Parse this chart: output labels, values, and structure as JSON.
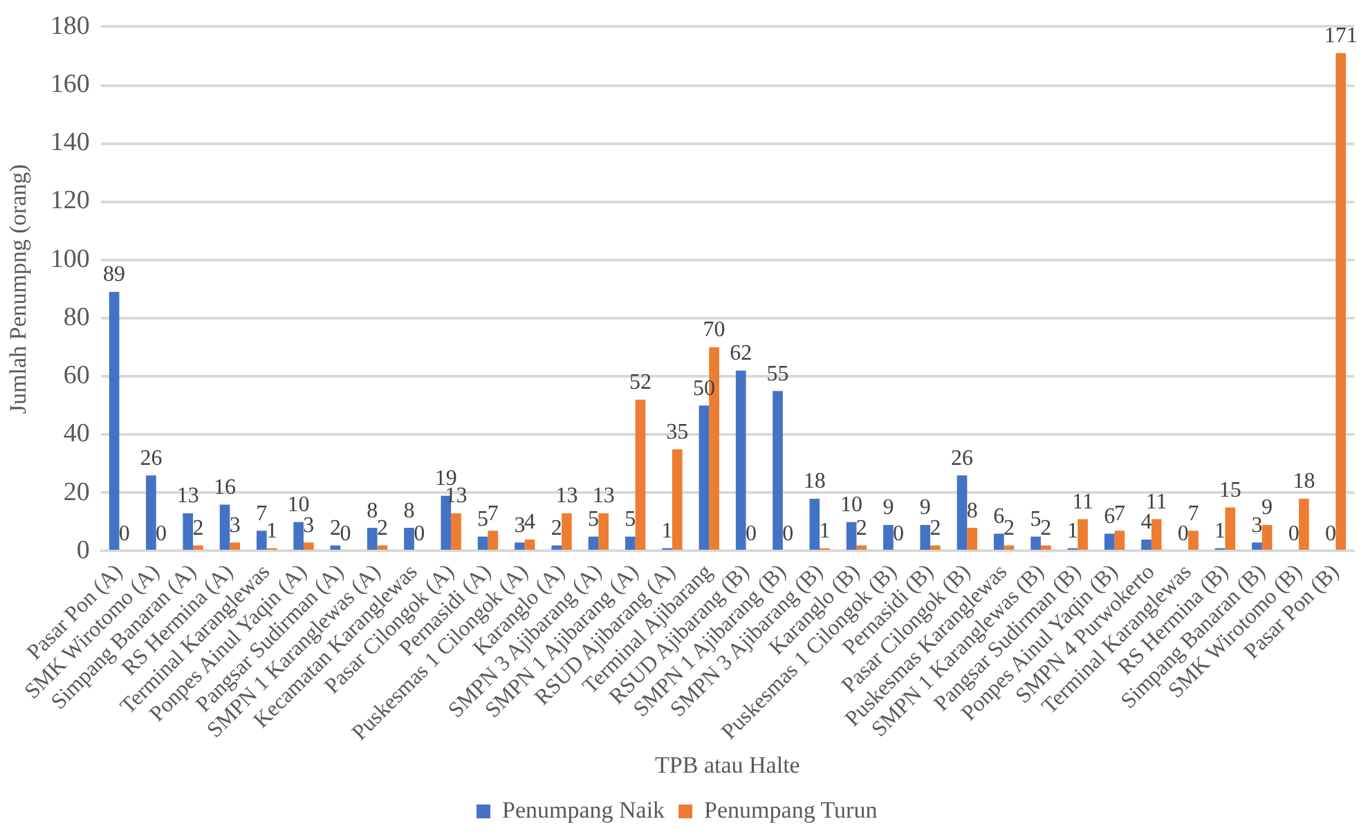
{
  "chart_data": {
    "type": "bar",
    "xlabel": "TPB atau Halte",
    "ylabel": "Jumlah Penumpng (orang)",
    "categories": [
      "Pasar Pon (A)",
      "SMK Wirotomo (A)",
      "Simpang Banaran (A)",
      "RS Hermina (A)",
      "Terminal Karanglewas",
      "Ponpes Ainul Yaqin (A)",
      "Pangsar Sudirman (A)",
      "SMPN 1 Karanglewas (A)",
      "Kecamatan Karanglewas",
      "Pasar Cilongok (A)",
      "Pernasidi (A)",
      "Puskesmas 1 Cilongok (A)",
      "Karanglo (A)",
      "SMPN 3 Ajibarang (A)",
      "SMPN 1 Ajibarang (A)",
      "RSUD Ajibarang (A)",
      "Terminal Ajibarang",
      "RSUD Ajibarang (B)",
      "SMPN 1 Ajibarang (B)",
      "SMPN 3 Ajibarang (B)",
      "Karanglo (B)",
      "Puskesmas 1 Cilongok (B)",
      "Pernasidi (B)",
      "Pasar Cilongok (B)",
      "Puskesmas Karanglewas",
      "SMPN 1 Karanglewas (B)",
      "Pangsar Sudirman (B)",
      "Ponpes Ainul Yaqin (B)",
      "SMPN 4 Purwokerto",
      "Terminal Karanglewas",
      "RS Hermina (B)",
      "Simpang Banaran (B)",
      "SMK Wirotomo (B)",
      "Pasar Pon (B)"
    ],
    "series": [
      {
        "name": "Penumpang Naik",
        "color": "#4472c4",
        "values": [
          89,
          26,
          13,
          16,
          7,
          10,
          2,
          8,
          8,
          19,
          5,
          3,
          2,
          5,
          5,
          1,
          50,
          62,
          55,
          18,
          10,
          9,
          9,
          26,
          6,
          5,
          1,
          6,
          4,
          0,
          1,
          3,
          0,
          0
        ]
      },
      {
        "name": "Penumpang Turun",
        "color": "#ed7d31",
        "values": [
          0,
          0,
          2,
          3,
          1,
          3,
          0,
          2,
          0,
          13,
          7,
          4,
          13,
          13,
          52,
          35,
          70,
          0,
          0,
          1,
          2,
          0,
          2,
          8,
          2,
          2,
          11,
          7,
          11,
          7,
          15,
          9,
          18,
          171
        ]
      }
    ],
    "ylim": [
      0,
      180
    ],
    "yticks": [
      0,
      20,
      40,
      60,
      80,
      100,
      120,
      140,
      160,
      180
    ],
    "grid": "y",
    "legend": "bottom",
    "data_labels": true
  }
}
